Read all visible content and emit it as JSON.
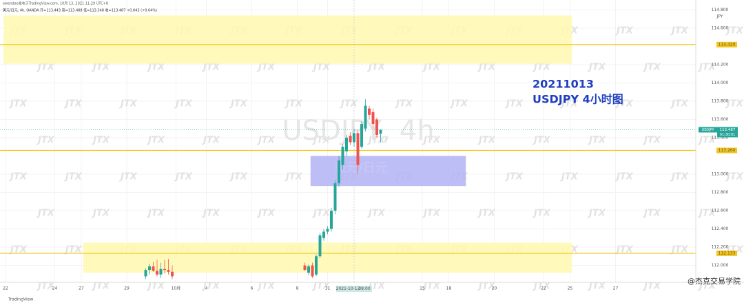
{
  "chart_data": {
    "type": "candlestick",
    "header_line1": "ewendao发布于TradingView.com, 10月 13, 2021 11:29 UTC+8",
    "header_line2": "美元/日元, 4h, OANDA  开=113.443  高=113.488  低=113.348  收=113.487  +0.043 (+0.04%)",
    "annotation_date": "20211013",
    "annotation_title": "USDJPY 4小时图",
    "symbol_watermark": "USDJPY, 4h",
    "zone_watermark": "美元/日元",
    "watermark": "JTX",
    "currency": "JPY",
    "symbol_badge": "USDJPY",
    "countdown": "01:30:01",
    "logo": "TradingView",
    "credit": "@杰克交易学院",
    "up_color": "#26a69a",
    "down_color": "#ef5350",
    "grid": true,
    "xlim": [
      0,
      182
    ],
    "ylim": [
      111.815,
      114.909
    ],
    "yticks": [
      {
        "value": 114.8,
        "label": "114.800"
      },
      {
        "value": 114.6,
        "label": "114.600"
      },
      {
        "value": 114.2,
        "label": "114.200"
      },
      {
        "value": 114.0,
        "label": "114.000"
      },
      {
        "value": 113.8,
        "label": "113.800"
      },
      {
        "value": 113.6,
        "label": "113.600"
      },
      {
        "value": 113.4,
        "label": "113.400"
      },
      {
        "value": 113.0,
        "label": "113.000"
      },
      {
        "value": 112.8,
        "label": "112.800"
      },
      {
        "value": 112.6,
        "label": "112.600"
      },
      {
        "value": 112.4,
        "label": "112.400"
      },
      {
        "value": 112.2,
        "label": "112.200"
      },
      {
        "value": 112.0,
        "label": "112.000"
      }
    ],
    "xticks": [
      {
        "value": 0,
        "label": "22"
      },
      {
        "value": 13,
        "label": "24"
      },
      {
        "value": 20,
        "label": "27"
      },
      {
        "value": 32,
        "label": "29"
      },
      {
        "value": 45,
        "label": "10月"
      },
      {
        "value": 53,
        "label": "4"
      },
      {
        "value": 65,
        "label": "6"
      },
      {
        "value": 77,
        "label": "8"
      },
      {
        "value": 85,
        "label": "11"
      },
      {
        "value": 110,
        "label": "15"
      },
      {
        "value": 117,
        "label": "18"
      },
      {
        "value": 129,
        "label": "20"
      },
      {
        "value": 142,
        "label": "22"
      },
      {
        "value": 149,
        "label": "25"
      },
      {
        "value": 161,
        "label": "27"
      }
    ],
    "crosshair": {
      "x": 92,
      "price": 113.487,
      "date": "2021-10-12",
      "time": "08:00"
    },
    "price_lines": [
      {
        "value": 114.42,
        "label": "114.420",
        "color": "#f5c518"
      },
      {
        "value": 113.26,
        "label": "113.260",
        "color": "#f5c518"
      },
      {
        "value": 112.133,
        "label": "112.133",
        "color": "#f5c518"
      }
    ],
    "last_price": {
      "value": 113.487,
      "label": "113.487"
    },
    "zones": [
      {
        "x": [
          -0.5,
          149.5
        ],
        "y": [
          114.21,
          114.74
        ],
        "color": "#fff9b0"
      },
      {
        "x": [
          20.5,
          149.5
        ],
        "y": [
          111.92,
          112.25
        ],
        "color": "#fff9b0"
      },
      {
        "x": [
          80.5,
          121.5
        ],
        "y": [
          112.87,
          113.2
        ],
        "color": "#b3b3f5"
      }
    ],
    "candles": {
      "x": [
        37,
        38,
        39,
        40,
        41,
        42,
        43,
        44,
        79,
        80,
        81,
        82,
        83,
        84,
        85,
        86,
        87,
        88,
        89,
        90,
        91,
        92,
        93,
        94,
        95,
        96,
        97,
        98,
        99
      ],
      "open": [
        111.88,
        111.95,
        111.99,
        111.94,
        111.9,
        111.96,
        111.95,
        111.93,
        112.0,
        111.92,
        112.0,
        111.9,
        112.1,
        112.3,
        112.37,
        112.4,
        112.6,
        112.9,
        113.1,
        113.25,
        113.42,
        113.35,
        113.45,
        113.3,
        113.5,
        113.72,
        113.68,
        113.6,
        113.443
      ],
      "high": [
        111.97,
        112.02,
        112.04,
        112.06,
        112.03,
        112.06,
        112.07,
        112.0,
        112.03,
        112.01,
        112.03,
        112.12,
        112.36,
        112.4,
        112.43,
        112.63,
        112.93,
        113.2,
        113.33,
        113.43,
        113.46,
        113.5,
        113.48,
        113.58,
        113.82,
        113.75,
        113.72,
        113.62,
        113.488
      ],
      "low": [
        111.85,
        111.9,
        111.93,
        111.88,
        111.86,
        111.91,
        111.9,
        111.85,
        111.94,
        111.89,
        111.86,
        111.88,
        112.08,
        112.27,
        112.34,
        112.37,
        112.56,
        112.86,
        113.05,
        113.2,
        113.32,
        113.3,
        113.0,
        113.28,
        113.47,
        113.6,
        113.5,
        113.4,
        113.348
      ],
      "close": [
        111.95,
        111.99,
        111.94,
        111.9,
        111.96,
        111.95,
        111.93,
        111.88,
        111.95,
        111.99,
        111.88,
        112.1,
        112.33,
        112.37,
        112.4,
        112.6,
        112.9,
        113.15,
        113.3,
        113.4,
        113.35,
        113.45,
        113.1,
        113.55,
        113.75,
        113.65,
        113.55,
        113.43,
        113.487
      ]
    }
  }
}
